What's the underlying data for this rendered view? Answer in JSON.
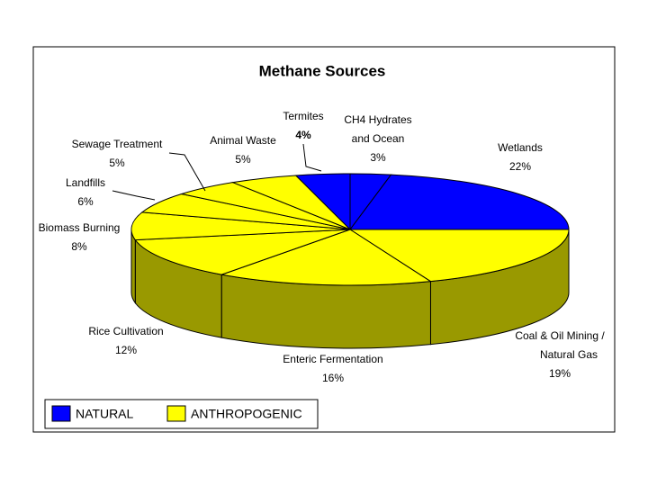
{
  "chart_data": {
    "type": "pie3d",
    "title": "Methane Sources",
    "categories": [
      [
        "Termites"
      ],
      [
        "CH4 Hydrates",
        "and Ocean"
      ],
      [
        "Wetlands"
      ],
      [
        "Coal & Oil Mining /",
        "Natural Gas"
      ],
      [
        "Enteric Fermentation"
      ],
      [
        "Rice Cultivation"
      ],
      [
        "Biomass Burning"
      ],
      [
        "Landfills"
      ],
      [
        "Sewage Treatment"
      ],
      [
        "Animal Waste"
      ]
    ],
    "values": [
      4,
      3,
      22,
      19,
      16,
      12,
      8,
      6,
      5,
      5
    ],
    "value_labels": [
      "4%",
      "3%",
      "22%",
      "19%",
      "16%",
      "12%",
      "8%",
      "6%",
      "5%",
      "5%"
    ],
    "groups": [
      0,
      0,
      0,
      1,
      1,
      1,
      1,
      1,
      1,
      1
    ],
    "legend": [
      {
        "name": "NATURAL",
        "color": "#0000ff"
      },
      {
        "name": "ANTHROPOGENIC",
        "color": "#ffff00"
      }
    ]
  }
}
